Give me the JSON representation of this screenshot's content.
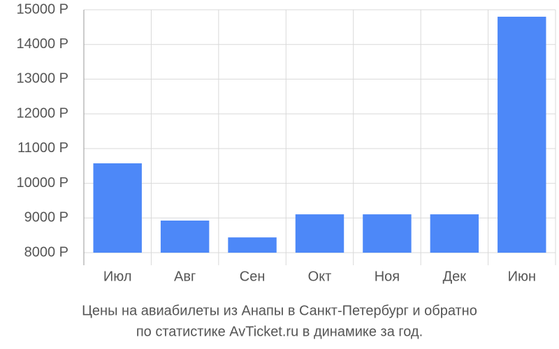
{
  "chart_data": {
    "type": "bar",
    "title": "Цены на авиабилеты из Анапы в Санкт-Петербург и обратно",
    "subtitle": "по статистике AvTicket.ru в динамике за год.",
    "categories": [
      "Июл",
      "Авг",
      "Сен",
      "Окт",
      "Ноя",
      "Дек",
      "Июн"
    ],
    "values": [
      10575,
      8925,
      8440,
      9105,
      9105,
      9105,
      14800
    ],
    "color": "#4d88f8",
    "ylim": [
      8000,
      15000
    ],
    "yticks": [
      {
        "value": 8000,
        "label": "8000 Р"
      },
      {
        "value": 9000,
        "label": "9000 Р"
      },
      {
        "value": 10000,
        "label": "10000 Р"
      },
      {
        "value": 11000,
        "label": "11000 Р"
      },
      {
        "value": 12000,
        "label": "12000 Р"
      },
      {
        "value": 13000,
        "label": "13000 Р"
      },
      {
        "value": 14000,
        "label": "14000 Р"
      },
      {
        "value": 15000,
        "label": "15000 Р"
      }
    ],
    "grid": true
  }
}
